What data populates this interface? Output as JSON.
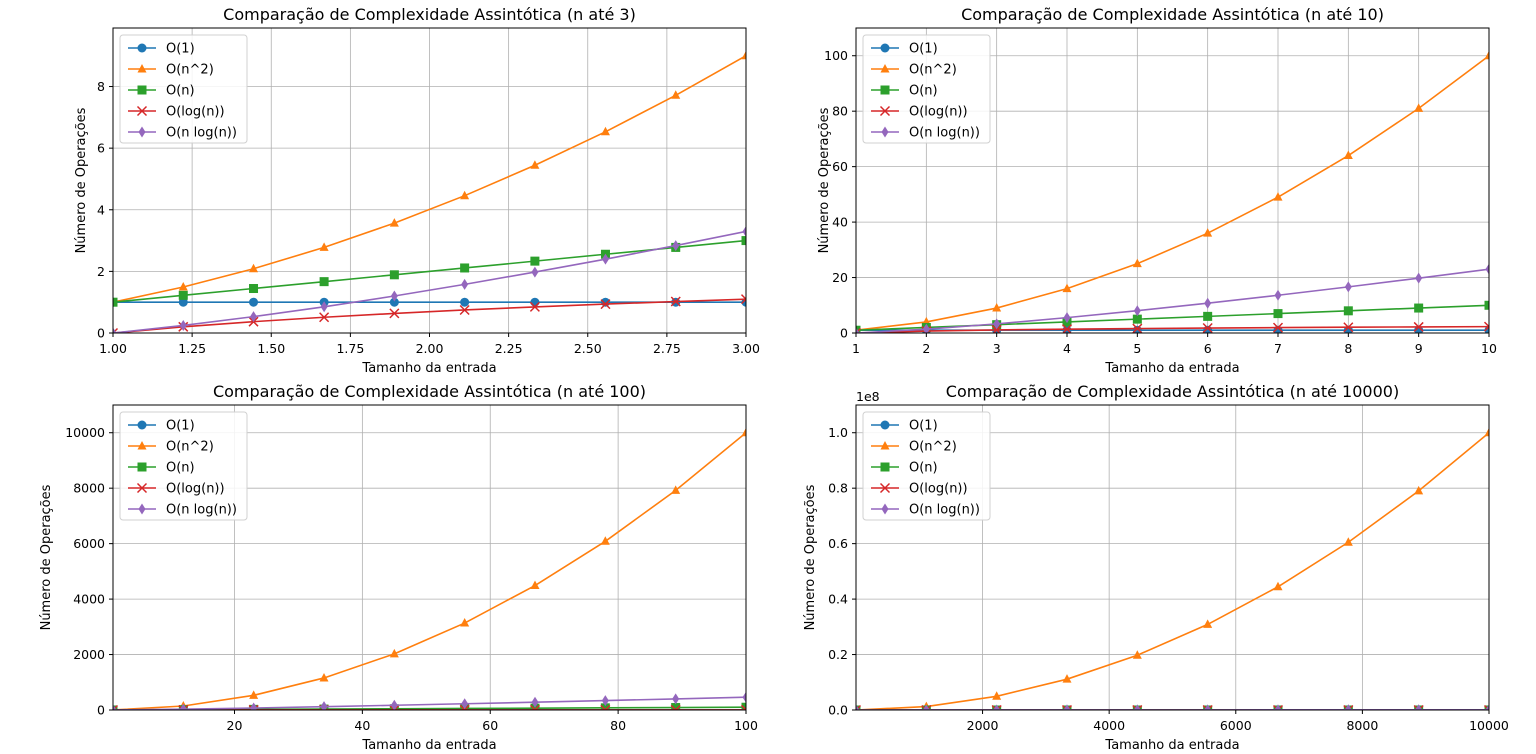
{
  "colors": {
    "O(1)": "#1f77b4",
    "O(n^2)": "#ff7f0e",
    "O(n)": "#2ca02c",
    "O(log(n))": "#d62728",
    "O(n log(n))": "#9467bd"
  },
  "chart_data": [
    {
      "type": "line",
      "title": "Comparação de Complexidade Assintótica (n até 3)",
      "xlabel": "Tamanho da entrada",
      "ylabel": "Número de Operações",
      "xlim": [
        1,
        3
      ],
      "ylim": [
        0,
        9.9
      ],
      "xticks": [
        "1.00",
        "1.25",
        "1.50",
        "1.75",
        "2.00",
        "2.25",
        "2.50",
        "2.75",
        "3.00"
      ],
      "yticks": [
        "0",
        "2",
        "4",
        "6",
        "8"
      ],
      "offset_label": "",
      "legend": "top-left",
      "grid": true,
      "x": [
        1.0,
        1.222,
        1.444,
        1.667,
        1.889,
        2.111,
        2.333,
        2.556,
        2.778,
        3.0
      ],
      "series": [
        {
          "name": "O(1)",
          "marker": "circle",
          "values": [
            1,
            1,
            1,
            1,
            1,
            1,
            1,
            1,
            1,
            1
          ]
        },
        {
          "name": "O(n^2)",
          "marker": "triangle",
          "values": [
            1.0,
            1.494,
            2.086,
            2.778,
            3.568,
            4.457,
            5.444,
            6.531,
            7.716,
            9.0
          ]
        },
        {
          "name": "O(n)",
          "marker": "square",
          "values": [
            1.0,
            1.222,
            1.444,
            1.667,
            1.889,
            2.111,
            2.333,
            2.556,
            2.778,
            3.0
          ]
        },
        {
          "name": "O(log(n))",
          "marker": "x",
          "values": [
            0.0,
            0.201,
            0.368,
            0.511,
            0.636,
            0.747,
            0.847,
            0.938,
            1.022,
            1.099
          ]
        },
        {
          "name": "O(n log(n))",
          "marker": "diamond",
          "values": [
            0.0,
            0.245,
            0.531,
            0.851,
            1.201,
            1.578,
            1.977,
            2.397,
            2.838,
            3.296
          ]
        }
      ]
    },
    {
      "type": "line",
      "title": "Comparação de Complexidade Assintótica (n até 10)",
      "xlabel": "Tamanho da entrada",
      "ylabel": "Número de Operações",
      "xlim": [
        1,
        10
      ],
      "ylim": [
        0,
        110
      ],
      "xticks": [
        "1",
        "2",
        "3",
        "4",
        "5",
        "6",
        "7",
        "8",
        "9",
        "10"
      ],
      "yticks": [
        "0",
        "20",
        "40",
        "60",
        "80",
        "100"
      ],
      "offset_label": "",
      "legend": "top-left",
      "grid": true,
      "x": [
        1,
        2,
        3,
        4,
        5,
        6,
        7,
        8,
        9,
        10
      ],
      "series": [
        {
          "name": "O(1)",
          "marker": "circle",
          "values": [
            1,
            1,
            1,
            1,
            1,
            1,
            1,
            1,
            1,
            1
          ]
        },
        {
          "name": "O(n^2)",
          "marker": "triangle",
          "values": [
            1,
            4,
            9,
            16,
            25,
            36,
            49,
            64,
            81,
            100
          ]
        },
        {
          "name": "O(n)",
          "marker": "square",
          "values": [
            1,
            2,
            3,
            4,
            5,
            6,
            7,
            8,
            9,
            10
          ]
        },
        {
          "name": "O(log(n))",
          "marker": "x",
          "values": [
            0.0,
            0.693,
            1.099,
            1.386,
            1.609,
            1.792,
            1.946,
            2.079,
            2.197,
            2.303
          ]
        },
        {
          "name": "O(n log(n))",
          "marker": "diamond",
          "values": [
            0.0,
            1.386,
            3.296,
            5.545,
            8.047,
            10.751,
            13.621,
            16.636,
            19.775,
            23.026
          ]
        }
      ]
    },
    {
      "type": "line",
      "title": "Comparação de Complexidade Assintótica (n até 100)",
      "xlabel": "Tamanho da entrada",
      "ylabel": "Número de Operações",
      "xlim": [
        1,
        100
      ],
      "ylim": [
        0,
        11000
      ],
      "xticks": [
        "20",
        "40",
        "60",
        "80",
        "100"
      ],
      "yticks": [
        "0",
        "2000",
        "4000",
        "6000",
        "8000",
        "10000"
      ],
      "offset_label": "",
      "legend": "top-left",
      "grid": true,
      "x": [
        1,
        12,
        23,
        34,
        45,
        56,
        67,
        78,
        89,
        100
      ],
      "series": [
        {
          "name": "O(1)",
          "marker": "circle",
          "values": [
            1,
            1,
            1,
            1,
            1,
            1,
            1,
            1,
            1,
            1
          ]
        },
        {
          "name": "O(n^2)",
          "marker": "triangle",
          "values": [
            1,
            144,
            529,
            1156,
            2025,
            3136,
            4489,
            6084,
            7921,
            10000
          ]
        },
        {
          "name": "O(n)",
          "marker": "square",
          "values": [
            1,
            12,
            23,
            34,
            45,
            56,
            67,
            78,
            89,
            100
          ]
        },
        {
          "name": "O(log(n))",
          "marker": "x",
          "values": [
            0.0,
            2.485,
            3.135,
            3.526,
            3.807,
            4.025,
            4.205,
            4.357,
            4.489,
            4.605
          ]
        },
        {
          "name": "O(n log(n))",
          "marker": "diamond",
          "values": [
            0.0,
            29.8,
            72.1,
            119.9,
            171.3,
            225.4,
            281.7,
            339.8,
            399.5,
            460.5
          ]
        }
      ]
    },
    {
      "type": "line",
      "title": "Comparação de Complexidade Assintótica (n até 10000)",
      "xlabel": "Tamanho da entrada",
      "ylabel": "Número de Operações",
      "xlim": [
        1,
        10000
      ],
      "ylim": [
        0,
        110000000
      ],
      "xticks": [
        "2000",
        "4000",
        "6000",
        "8000",
        "10000"
      ],
      "yticks": [
        "0.0",
        "0.2",
        "0.4",
        "0.6",
        "0.8",
        "1.0"
      ],
      "offset_label": "1e8",
      "legend": "top-left",
      "grid": true,
      "x": [
        1,
        1112,
        2223,
        3334,
        4445,
        5556,
        6667,
        7778,
        8889,
        10000
      ],
      "series": [
        {
          "name": "O(1)",
          "marker": "circle",
          "values": [
            1,
            1,
            1,
            1,
            1,
            1,
            1,
            1,
            1,
            1
          ]
        },
        {
          "name": "O(n^2)",
          "marker": "triangle",
          "values": [
            1,
            1236544,
            4941729,
            11115556,
            19758025,
            30869136,
            44448889,
            60497284,
            79014321,
            100000000
          ]
        },
        {
          "name": "O(n)",
          "marker": "square",
          "values": [
            1,
            1112,
            2223,
            3334,
            4445,
            5556,
            6667,
            7778,
            8889,
            10000
          ]
        },
        {
          "name": "O(log(n))",
          "marker": "x",
          "values": [
            0.0,
            7.01,
            7.71,
            8.11,
            8.4,
            8.62,
            8.8,
            8.96,
            9.09,
            9.21
          ]
        },
        {
          "name": "O(n log(n))",
          "marker": "diamond",
          "values": [
            0,
            7800,
            17140,
            27050,
            37330,
            47890,
            58680,
            69680,
            80820,
            92100
          ]
        }
      ]
    }
  ]
}
